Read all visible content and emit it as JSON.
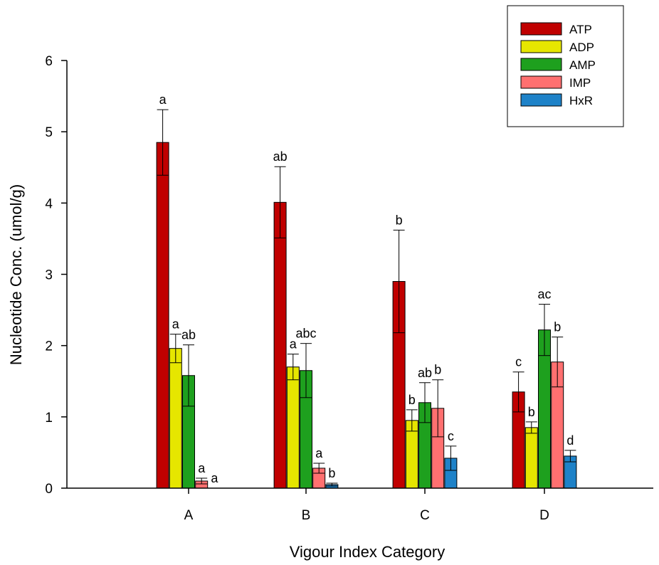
{
  "chart_data": {
    "type": "bar",
    "title": "",
    "xlabel": "Vigour Index Category",
    "ylabel": "Nucleotide Conc. (umol/g)",
    "categories": [
      "A",
      "B",
      "C",
      "D"
    ],
    "ylim": [
      0,
      6
    ],
    "yticks": [
      "0",
      "1",
      "2",
      "3",
      "4",
      "5",
      "6"
    ],
    "grid": false,
    "legend_position": "top-right",
    "series": [
      {
        "name": "ATP",
        "color": "#c00000",
        "values": [
          4.85,
          4.01,
          2.9,
          1.35
        ],
        "errors": [
          0.46,
          0.5,
          0.72,
          0.28
        ],
        "labels": [
          "a",
          "ab",
          "b",
          "c"
        ]
      },
      {
        "name": "ADP",
        "color": "#e6e600",
        "values": [
          1.96,
          1.7,
          0.95,
          0.85
        ],
        "errors": [
          0.2,
          0.18,
          0.15,
          0.08
        ],
        "labels": [
          "a",
          "a",
          "b",
          "b"
        ]
      },
      {
        "name": "AMP",
        "color": "#1ea01e",
        "values": [
          1.58,
          1.65,
          1.2,
          2.22
        ],
        "errors": [
          0.43,
          0.38,
          0.28,
          0.36
        ],
        "labels": [
          "ab",
          "abc",
          "ab",
          "ac"
        ]
      },
      {
        "name": "IMP",
        "color": "#ff7070",
        "values": [
          0.1,
          0.28,
          1.12,
          1.77
        ],
        "errors": [
          0.04,
          0.07,
          0.4,
          0.35
        ],
        "labels": [
          "a",
          "a",
          "b",
          "b"
        ]
      },
      {
        "name": "HxR",
        "color": "#1e82c8",
        "values": [
          0.0,
          0.05,
          0.42,
          0.45
        ],
        "errors": [
          0.0,
          0.02,
          0.17,
          0.08
        ],
        "labels": [
          "a",
          "b",
          "c",
          "d"
        ]
      }
    ]
  }
}
